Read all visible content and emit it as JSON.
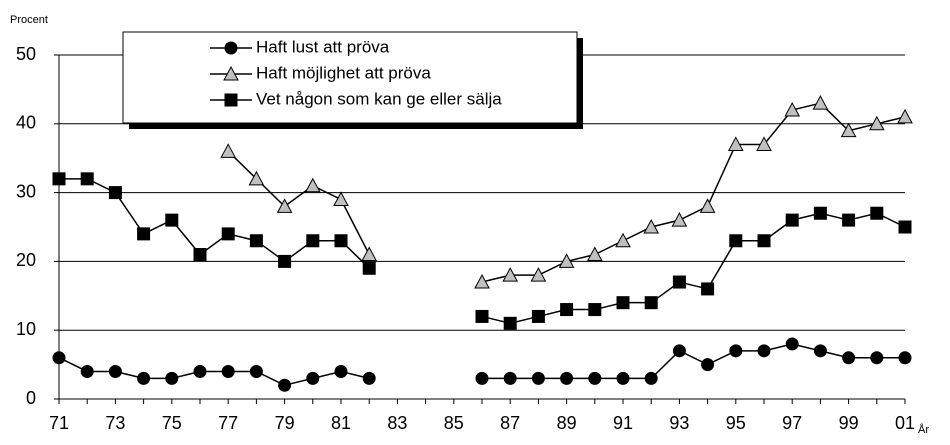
{
  "chart_data": {
    "type": "line",
    "ylabel": "Procent",
    "xlabel": "År",
    "categories": [
      "71",
      null,
      "73",
      null,
      "75",
      null,
      "77",
      null,
      "79",
      null,
      "81",
      null,
      "83",
      null,
      "85",
      null,
      "87",
      null,
      "89",
      null,
      "91",
      null,
      "93",
      null,
      "95",
      null,
      "97",
      null,
      "99",
      null,
      "01"
    ],
    "series": [
      {
        "name": "Haft lust att pröva",
        "color": "#000000",
        "marker": "circle",
        "values": [
          6,
          4,
          4,
          3,
          3,
          4,
          4,
          4,
          2,
          3,
          4,
          3,
          null,
          null,
          null,
          3,
          3,
          3,
          3,
          3,
          3,
          3,
          7,
          5,
          7,
          7,
          8,
          7,
          6,
          6,
          6
        ]
      },
      {
        "name": "Haft möjlighet att pröva",
        "color": "#c0c0c0",
        "marker": "triangle",
        "values": [
          null,
          null,
          null,
          null,
          null,
          null,
          36,
          32,
          28,
          31,
          29,
          21,
          null,
          null,
          null,
          17,
          18,
          18,
          20,
          21,
          23,
          25,
          26,
          28,
          37,
          37,
          42,
          43,
          39,
          40,
          41
        ]
      },
      {
        "name": "Vet någon som kan ge eller sälja",
        "color": "#000000",
        "marker": "square",
        "values": [
          32,
          32,
          30,
          24,
          26,
          21,
          24,
          23,
          20,
          23,
          23,
          19,
          null,
          null,
          null,
          12,
          11,
          12,
          13,
          13,
          14,
          14,
          17,
          16,
          23,
          23,
          26,
          27,
          26,
          27,
          25
        ]
      }
    ],
    "ylim": [
      0,
      50
    ],
    "yticks": [
      0,
      10,
      20,
      30,
      40,
      50
    ],
    "grid": true
  }
}
